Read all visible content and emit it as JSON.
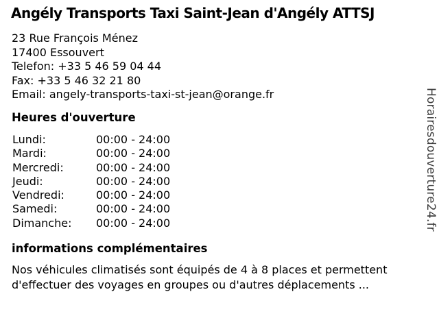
{
  "business": {
    "name": "Angély Transports Taxi Saint-Jean d'Angély ATTSJ",
    "street": "23 Rue François Ménez",
    "city": "17400 Essouvert",
    "phone_line": "Telefon: +33 5 46 59 04 44",
    "fax_line": "Fax: +33 5 46 32 21 80",
    "email_line": "Email: angely-transports-taxi-st-jean@orange.fr"
  },
  "hours": {
    "heading": "Heures d'ouverture",
    "rows": [
      {
        "day": "Lundi:",
        "time": "00:00 - 24:00"
      },
      {
        "day": "Mardi:",
        "time": "00:00 - 24:00"
      },
      {
        "day": "Mercredi:",
        "time": "00:00 - 24:00"
      },
      {
        "day": "Jeudi:",
        "time": "00:00 - 24:00"
      },
      {
        "day": "Vendredi:",
        "time": "00:00 - 24:00"
      },
      {
        "day": "Samedi:",
        "time": "00:00 - 24:00"
      },
      {
        "day": "Dimanche:",
        "time": "00:00 - 24:00"
      }
    ]
  },
  "additional_info": {
    "heading": "informations complémentaires",
    "line1": "Nos véhicules climatisés sont équipés de 4 à 8 places et permettent",
    "line2": "d'effectuer des voyages en groupes ou d'autres déplacements ..."
  },
  "watermark": {
    "text": "Horairesdouverture24.fr"
  },
  "colors": {
    "background": "#ffffff",
    "text": "#000000",
    "watermark": "#3d3d3d"
  }
}
